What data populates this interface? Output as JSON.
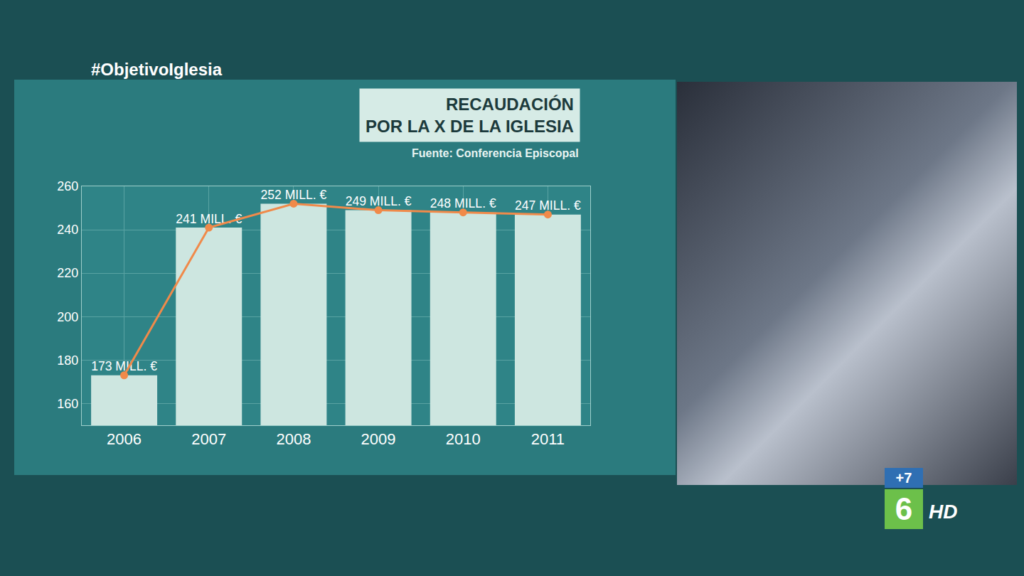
{
  "screen": {
    "hashtag": "#ObjetivoIglesia",
    "badges": [
      "+7",
      "6",
      "HD"
    ]
  },
  "chart_data": {
    "type": "bar",
    "title": "RECAUDACIÓN\nPOR LA X DE LA IGLESIA",
    "subtitle": "Fuente: Conferencia Episcopal",
    "categories": [
      "2006",
      "2007",
      "2008",
      "2009",
      "2010",
      "2011"
    ],
    "series": [
      {
        "type": "bar",
        "color": "#cde6e0",
        "values": [
          173,
          241,
          252,
          249,
          248,
          247
        ],
        "value_labels": [
          "173 MILL. €",
          "241 MILL. €",
          "252 MILL. €",
          "249 MILL. €",
          "248 MILL. €",
          "247 MILL. €"
        ]
      },
      {
        "type": "line",
        "color": "#f08a4a",
        "marker": "circle",
        "values": [
          173,
          241,
          252,
          249,
          248,
          247
        ]
      }
    ],
    "data_labels": true,
    "ylim": [
      150,
      260
    ],
    "yticks": [
      160,
      180,
      200,
      220,
      240,
      260
    ],
    "grid": true
  }
}
